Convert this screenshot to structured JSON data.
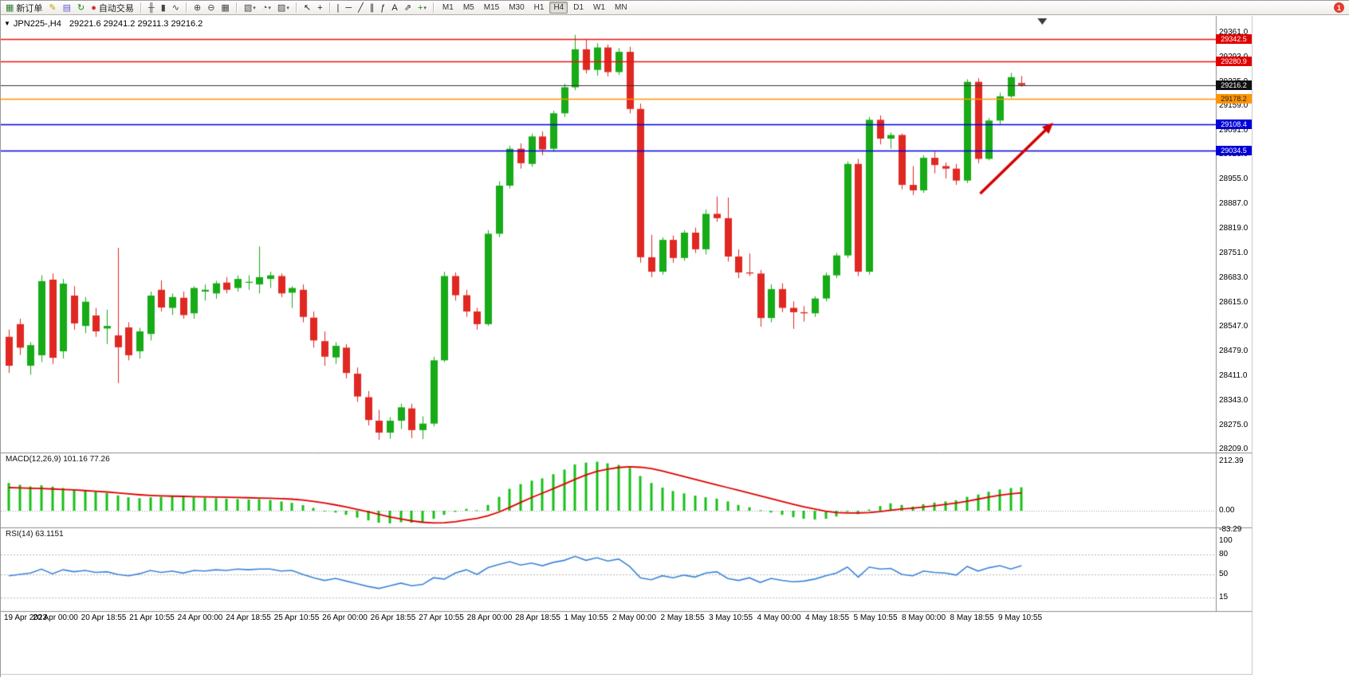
{
  "toolbar": {
    "items": [
      {
        "t": "btn",
        "name": "new-order-button",
        "glyph": "▦",
        "color": "#2e7d32",
        "label": "新订单"
      },
      {
        "t": "ico",
        "name": "metaeditor-icon",
        "glyph": "✎",
        "color": "#c99a00"
      },
      {
        "t": "ico",
        "name": "market-watch-icon",
        "glyph": "▤",
        "color": "#6a5acd"
      },
      {
        "t": "ico",
        "name": "refresh-icon",
        "glyph": "↻",
        "color": "#188a18"
      },
      {
        "t": "btn",
        "name": "auto-trading-button",
        "glyph": "●",
        "color": "#d32f2f",
        "label": "自动交易"
      },
      {
        "t": "div"
      },
      {
        "t": "ico",
        "name": "bar-chart-icon",
        "glyph": "╫",
        "color": "#444444"
      },
      {
        "t": "ico",
        "name": "candlestick-chart-icon",
        "glyph": "▮",
        "color": "#444444"
      },
      {
        "t": "ico",
        "name": "line-chart-icon",
        "glyph": "∿",
        "color": "#444444"
      },
      {
        "t": "div"
      },
      {
        "t": "ico",
        "name": "zoom-in-icon",
        "glyph": "⊕",
        "color": "#444444"
      },
      {
        "t": "ico",
        "name": "zoom-out-icon",
        "glyph": "⊖",
        "color": "#444444"
      },
      {
        "t": "ico",
        "name": "tile-windows-icon",
        "glyph": "▦",
        "color": "#444444"
      },
      {
        "t": "div"
      },
      {
        "t": "ico",
        "name": "new-chart-icon",
        "glyph": "▧",
        "color": "#444444",
        "dd": true
      },
      {
        "t": "ico",
        "name": "periods-icon",
        "glyph": "◔",
        "color": "#444444",
        "dd": true
      },
      {
        "t": "ico",
        "name": "templates-icon",
        "glyph": "▨",
        "color": "#444444",
        "dd": true
      },
      {
        "t": "div"
      },
      {
        "t": "ico",
        "name": "cursor-icon",
        "glyph": "↖",
        "color": "#222222"
      },
      {
        "t": "ico",
        "name": "crosshair-icon",
        "glyph": "+",
        "color": "#222222"
      },
      {
        "t": "div"
      },
      {
        "t": "ico",
        "name": "vertical-line-icon",
        "glyph": "|",
        "color": "#222222"
      },
      {
        "t": "ico",
        "name": "horizontal-line-icon",
        "glyph": "─",
        "color": "#222222"
      },
      {
        "t": "ico",
        "name": "trendline-icon",
        "glyph": "╱",
        "color": "#222222"
      },
      {
        "t": "ico",
        "name": "equidistant-channel-icon",
        "glyph": "∥",
        "color": "#222222"
      },
      {
        "t": "ico",
        "name": "fibonacci-icon",
        "glyph": "ƒ",
        "color": "#222222"
      },
      {
        "t": "ico",
        "name": "text-icon",
        "glyph": "A",
        "color": "#222222"
      },
      {
        "t": "ico",
        "name": "arrows-icon",
        "glyph": "⇗",
        "color": "#222222"
      },
      {
        "t": "ico",
        "name": "indicators-icon",
        "glyph": "+",
        "color": "#188a18",
        "dd": true
      },
      {
        "t": "div"
      },
      {
        "t": "tfs"
      },
      {
        "t": "sp"
      },
      {
        "t": "badge",
        "name": "notification-badge",
        "label": "1"
      }
    ],
    "timeframes": [
      "M1",
      "M5",
      "M15",
      "M30",
      "H1",
      "H4",
      "D1",
      "W1",
      "MN"
    ],
    "active_timeframe": "H4",
    "notification_count": "1"
  },
  "chart": {
    "title": "JPN225-,H4",
    "ohlc": "29221.6 29241.2 29211.3 29216.2",
    "window_menu_icon": "▼"
  },
  "indicators": {
    "macd_label": "MACD(12,26,9) 101.16 77.26",
    "rsi_label": "RSI(14) 63.1151"
  },
  "colors": {
    "bull": "#17ab17",
    "bear": "#e02823",
    "macd_hist": "#17c117",
    "macd_signal": "#e00000",
    "rsi": "#3d85d8",
    "separator": "#8e8e8e",
    "arrow": "#d40000",
    "level_red": "#ee1111",
    "level_orange": "#ff9500",
    "level_blue": "#0000e0",
    "current_price_line": "#333333"
  },
  "chart_data": {
    "type": "candlestick",
    "symbol": "JPN225-",
    "timeframe": "H4",
    "current_bar": {
      "open": 29221.6,
      "high": 29241.2,
      "low": 29211.3,
      "close": 29216.2
    },
    "price_ticks": [
      29361.0,
      29293.0,
      29225.0,
      29159.0,
      29091.0,
      29023.0,
      28955.0,
      28887.0,
      28819.0,
      28751.0,
      28683.0,
      28615.0,
      28547.0,
      28479.0,
      28411.0,
      28343.0,
      28275.0,
      28209.0
    ],
    "hlines": [
      {
        "price": 29342.5,
        "color": "#ee1111"
      },
      {
        "price": 29280.9,
        "color": "#ee1111"
      },
      {
        "price": 29216.2,
        "color": "#333333",
        "role": "current-price"
      },
      {
        "price": 29178.2,
        "color": "#ff9500"
      },
      {
        "price": 29108.4,
        "color": "#0000e0"
      },
      {
        "price": 29034.5,
        "color": "#0000e0"
      }
    ],
    "price_badges": [
      {
        "label": "29342.5",
        "price": 29342.5,
        "bg": "#e00000",
        "fg": "#ffffff"
      },
      {
        "label": "29280.9",
        "price": 29280.9,
        "bg": "#e00000",
        "fg": "#ffffff"
      },
      {
        "label": "29216.2",
        "price": 29216.2,
        "bg": "#101010",
        "fg": "#ffffff"
      },
      {
        "label": "29178.2",
        "price": 29178.2,
        "bg": "#ff9500",
        "fg": "#222222"
      },
      {
        "label": "29108.4",
        "price": 29108.4,
        "bg": "#0000d8",
        "fg": "#ffffff"
      },
      {
        "label": "29034.5",
        "price": 29034.5,
        "bg": "#0000d8",
        "fg": "#ffffff"
      }
    ],
    "candles": [
      [
        28520,
        28540,
        28420,
        28440
      ],
      [
        28555,
        28570,
        28470,
        28490
      ],
      [
        28440,
        28505,
        28415,
        28497
      ],
      [
        28469,
        28690,
        28450,
        28674
      ],
      [
        28678,
        28695,
        28445,
        28462
      ],
      [
        28480,
        28680,
        28460,
        28667
      ],
      [
        28634,
        28660,
        28540,
        28557
      ],
      [
        28550,
        28630,
        28530,
        28617
      ],
      [
        28579,
        28600,
        28520,
        28535
      ],
      [
        28543,
        28595,
        28500,
        28550
      ],
      [
        28524,
        28766,
        28392,
        28491
      ],
      [
        28546,
        28560,
        28455,
        28469
      ],
      [
        28480,
        28545,
        28460,
        28535
      ],
      [
        28528,
        28645,
        28510,
        28634
      ],
      [
        28650,
        28676,
        28590,
        28601
      ],
      [
        28600,
        28640,
        28580,
        28630
      ],
      [
        28628,
        28645,
        28570,
        28580
      ],
      [
        28585,
        28660,
        28570,
        28655
      ],
      [
        28645,
        28665,
        28620,
        28650
      ],
      [
        28640,
        28675,
        28625,
        28668
      ],
      [
        28670,
        28685,
        28640,
        28650
      ],
      [
        28655,
        28690,
        28645,
        28680
      ],
      [
        28670,
        28690,
        28650,
        28672
      ],
      [
        28665,
        28770,
        28640,
        28685
      ],
      [
        28680,
        28700,
        28655,
        28690
      ],
      [
        28688,
        28695,
        28630,
        28640
      ],
      [
        28642,
        28660,
        28600,
        28655
      ],
      [
        28650,
        28665,
        28560,
        28575
      ],
      [
        28573,
        28590,
        28490,
        28510
      ],
      [
        28508,
        28535,
        28440,
        28465
      ],
      [
        28463,
        28505,
        28445,
        28495
      ],
      [
        28490,
        28500,
        28405,
        28420
      ],
      [
        28418,
        28435,
        28340,
        28355
      ],
      [
        28353,
        28370,
        28275,
        28290
      ],
      [
        28288,
        28318,
        28235,
        28255
      ],
      [
        28255,
        28298,
        28238,
        28288
      ],
      [
        28288,
        28335,
        28265,
        28325
      ],
      [
        28322,
        28335,
        28240,
        28262
      ],
      [
        28262,
        28300,
        28237,
        28280
      ],
      [
        28280,
        28465,
        28272,
        28455
      ],
      [
        28455,
        28700,
        28450,
        28688
      ],
      [
        28688,
        28698,
        28620,
        28635
      ],
      [
        28635,
        28650,
        28575,
        28590
      ],
      [
        28590,
        28600,
        28540,
        28555
      ],
      [
        28555,
        28815,
        28550,
        28805
      ],
      [
        28805,
        28950,
        28795,
        28938
      ],
      [
        28938,
        29048,
        28930,
        29040
      ],
      [
        29040,
        29055,
        28985,
        29000
      ],
      [
        28998,
        29082,
        28990,
        29074
      ],
      [
        29074,
        29088,
        29022,
        29038
      ],
      [
        29040,
        29145,
        29032,
        29138
      ],
      [
        29138,
        29220,
        29128,
        29210
      ],
      [
        29210,
        29355,
        29202,
        29315
      ],
      [
        29315,
        29342,
        29248,
        29258
      ],
      [
        29258,
        29332,
        29242,
        29320
      ],
      [
        29320,
        29328,
        29240,
        29252
      ],
      [
        29252,
        29318,
        29244,
        29308
      ],
      [
        29308,
        29322,
        29138,
        29150
      ],
      [
        29150,
        29165,
        28725,
        28740
      ],
      [
        28740,
        28802,
        28685,
        28700
      ],
      [
        28700,
        28795,
        28692,
        28788
      ],
      [
        28788,
        28800,
        28725,
        28738
      ],
      [
        28738,
        28815,
        28730,
        28808
      ],
      [
        28808,
        28822,
        28752,
        28762
      ],
      [
        28762,
        28872,
        28748,
        28860
      ],
      [
        28860,
        28908,
        28838,
        28848
      ],
      [
        28848,
        28905,
        28728,
        28742
      ],
      [
        28742,
        28762,
        28682,
        28698
      ],
      [
        28698,
        28750,
        28688,
        28695
      ],
      [
        28695,
        28705,
        28548,
        28572
      ],
      [
        28572,
        28665,
        28560,
        28652
      ],
      [
        28652,
        28668,
        28588,
        28600
      ],
      [
        28600,
        28618,
        28542,
        28588
      ],
      [
        28588,
        28605,
        28562,
        28585
      ],
      [
        28585,
        28632,
        28575,
        28626
      ],
      [
        28626,
        28698,
        28618,
        28690
      ],
      [
        28690,
        28752,
        28682,
        28745
      ],
      [
        28745,
        29005,
        28738,
        28998
      ],
      [
        28998,
        29012,
        28688,
        28700
      ],
      [
        28700,
        29128,
        28692,
        29120
      ],
      [
        29120,
        29132,
        29052,
        29068
      ],
      [
        29068,
        29085,
        29040,
        29078
      ],
      [
        29078,
        29082,
        28928,
        28940
      ],
      [
        28940,
        28992,
        28912,
        28925
      ],
      [
        28925,
        29022,
        28918,
        29015
      ],
      [
        29015,
        29032,
        28972,
        28995
      ],
      [
        28992,
        29002,
        28958,
        28985
      ],
      [
        28985,
        28998,
        28940,
        28952
      ],
      [
        28952,
        29232,
        28945,
        29225
      ],
      [
        29225,
        29235,
        29000,
        29012
      ],
      [
        29012,
        29125,
        29008,
        29118
      ],
      [
        29118,
        29195,
        29108,
        29185
      ],
      [
        29185,
        29250,
        29180,
        29238
      ],
      [
        29221.6,
        29241.2,
        29211.3,
        29216.2
      ]
    ],
    "macd": {
      "label": "MACD(12,26,9) 101.16 77.26",
      "params": [
        12,
        26,
        9
      ],
      "value": 101.16,
      "signal_value": 77.26,
      "axis": [
        {
          "v": 212.39,
          "label": "212.39"
        },
        {
          "v": 0,
          "label": "0.00"
        },
        {
          "v": -83.29,
          "label": "-83.29"
        }
      ],
      "histogram": [
        120,
        112,
        105,
        110,
        104,
        98,
        92,
        88,
        82,
        76,
        66,
        58,
        54,
        58,
        60,
        62,
        60,
        58,
        56,
        54,
        52,
        50,
        48,
        50,
        46,
        40,
        34,
        24,
        12,
        0,
        -8,
        -18,
        -30,
        -42,
        -52,
        -55,
        -50,
        -52,
        -48,
        -35,
        -18,
        -5,
        8,
        2,
        25,
        60,
        95,
        115,
        130,
        140,
        158,
        178,
        200,
        208,
        212,
        205,
        198,
        185,
        150,
        120,
        100,
        85,
        75,
        65,
        58,
        52,
        40,
        25,
        15,
        2,
        -8,
        -18,
        -28,
        -35,
        -38,
        -35,
        -25,
        -5,
        -15,
        5,
        20,
        32,
        25,
        18,
        28,
        35,
        40,
        45,
        60,
        70,
        82,
        92,
        98,
        101.16
      ],
      "signal": [
        100,
        99,
        97,
        96,
        94,
        92,
        90,
        87,
        84,
        81,
        77,
        73,
        69,
        66,
        64,
        63,
        62,
        61,
        60,
        59,
        58,
        57,
        56,
        55,
        54,
        52,
        50,
        46,
        40,
        33,
        25,
        16,
        6,
        -5,
        -16,
        -27,
        -36,
        -44,
        -50,
        -53,
        -52,
        -48,
        -40,
        -33,
        -22,
        -6,
        14,
        36,
        57,
        76,
        95,
        115,
        136,
        155,
        170,
        180,
        187,
        190,
        188,
        182,
        172,
        160,
        148,
        136,
        124,
        112,
        100,
        88,
        76,
        64,
        52,
        40,
        28,
        17,
        7,
        -2,
        -8,
        -10,
        -10,
        -8,
        -4,
        2,
        7,
        11,
        16,
        21,
        27,
        33,
        41,
        50,
        59,
        67,
        73,
        77.26
      ]
    },
    "rsi": {
      "label": "RSI(14) 63.1151",
      "period": 14,
      "value": 63.1151,
      "levels": [
        80,
        50,
        15
      ],
      "axis": [
        {
          "v": 100,
          "label": "100"
        },
        {
          "v": 80,
          "label": "80"
        },
        {
          "v": 50,
          "label": "50"
        },
        {
          "v": 15,
          "label": "15"
        }
      ],
      "values": [
        48,
        50,
        52,
        58,
        51,
        57,
        54,
        56,
        53,
        54,
        50,
        48,
        51,
        56,
        53,
        55,
        52,
        56,
        55,
        57,
        56,
        58,
        57,
        58,
        58,
        55,
        56,
        50,
        45,
        41,
        44,
        40,
        36,
        32,
        29,
        33,
        37,
        33,
        35,
        45,
        43,
        52,
        57,
        50,
        60,
        65,
        69,
        64,
        67,
        63,
        68,
        71,
        77,
        71,
        75,
        70,
        73,
        62,
        45,
        42,
        48,
        45,
        49,
        46,
        52,
        54,
        44,
        41,
        45,
        38,
        44,
        41,
        39,
        40,
        43,
        48,
        52,
        61,
        46,
        61,
        58,
        59,
        50,
        48,
        55,
        53,
        52,
        49,
        62,
        55,
        60,
        63,
        58,
        63.12
      ]
    },
    "time_labels": [
      "19 Apr 2023",
      "20 Apr 00:00",
      "20 Apr 18:55",
      "21 Apr 10:55",
      "24 Apr 00:00",
      "24 Apr 18:55",
      "25 Apr 10:55",
      "26 Apr 00:00",
      "26 Apr 18:55",
      "27 Apr 10:55",
      "28 Apr 00:00",
      "28 Apr 18:55",
      "1 May 10:55",
      "2 May 00:00",
      "2 May 18:55",
      "3 May 10:55",
      "4 May 00:00",
      "4 May 18:55",
      "5 May 10:55",
      "8 May 00:00",
      "8 May 18:55",
      "9 May 10:55"
    ],
    "arrow": {
      "from": {
        "bar": 89.2,
        "price": 28916
      },
      "to": {
        "bar": 95.9,
        "price": 29112
      },
      "color": "#d40000"
    },
    "shift_marker_bar": 94.9
  }
}
